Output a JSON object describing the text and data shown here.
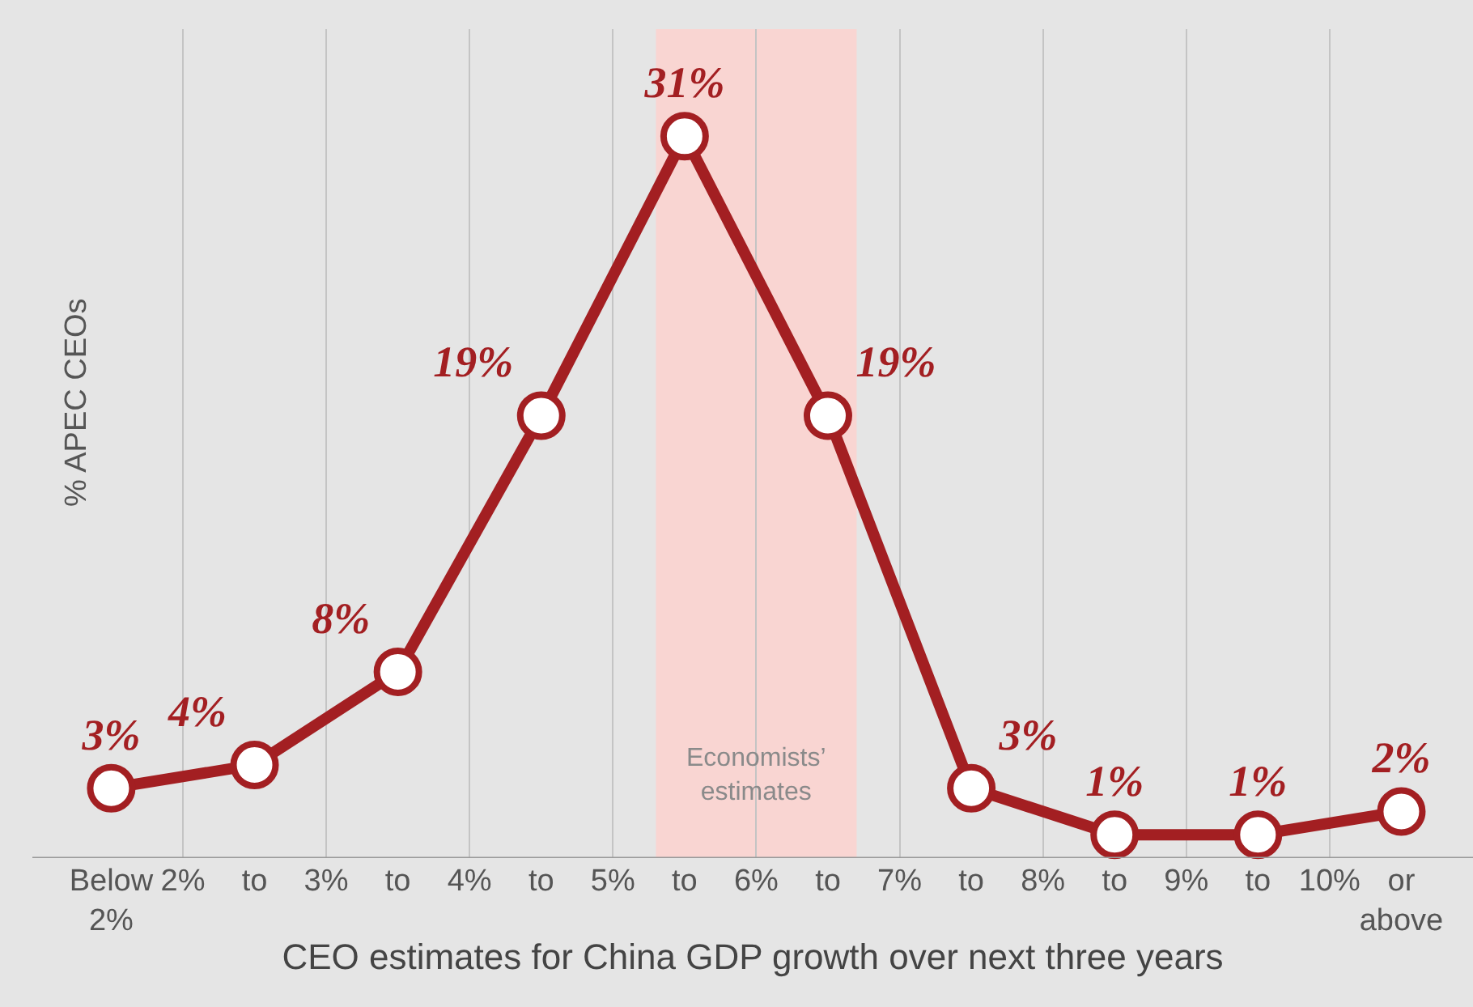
{
  "chart_data": {
    "type": "line",
    "xlabel": "CEO estimates for China GDP growth over next three years",
    "ylabel": "% APEC CEOs",
    "x": [
      1.5,
      2.5,
      3.5,
      4.5,
      5.5,
      6.5,
      7.5,
      8.5,
      9.5,
      10.5
    ],
    "series": [
      {
        "color": "#a31f22",
        "values": [
          3,
          4,
          8,
          19,
          31,
          19,
          3,
          1,
          1,
          2
        ],
        "value_labels": [
          "3%",
          "4%",
          "8%",
          "19%",
          "31%",
          "19%",
          "3%",
          "1%",
          "1%",
          "2%"
        ]
      }
    ],
    "xlim": [
      0.95,
      11
    ],
    "xticks": [
      {
        "value": 1.5,
        "label": "Below\n2%"
      },
      {
        "value": 2,
        "label": "2%"
      },
      {
        "value": 2.5,
        "label": "to"
      },
      {
        "value": 3,
        "label": "3%"
      },
      {
        "value": 3.5,
        "label": "to"
      },
      {
        "value": 4,
        "label": "4%"
      },
      {
        "value": 4.5,
        "label": "to"
      },
      {
        "value": 5,
        "label": "5%"
      },
      {
        "value": 5.5,
        "label": "to"
      },
      {
        "value": 6,
        "label": "6%"
      },
      {
        "value": 6.5,
        "label": "to"
      },
      {
        "value": 7,
        "label": "7%"
      },
      {
        "value": 7.5,
        "label": "to"
      },
      {
        "value": 8,
        "label": "8%"
      },
      {
        "value": 8.5,
        "label": "to"
      },
      {
        "value": 9,
        "label": "9%"
      },
      {
        "value": 9.5,
        "label": "to"
      },
      {
        "value": 10,
        "label": "10%"
      },
      {
        "value": 10.5,
        "label": "or\nabove"
      }
    ],
    "ylim": [
      0,
      35.6
    ],
    "tick_labels": "x",
    "grid": "x",
    "marker": "circle",
    "line_style": "solid",
    "bands": [
      {
        "axis": "x",
        "from": 5.3,
        "to": 6.7,
        "label": "Economists’\nestimates",
        "color": "#f9d5d2"
      }
    ]
  }
}
